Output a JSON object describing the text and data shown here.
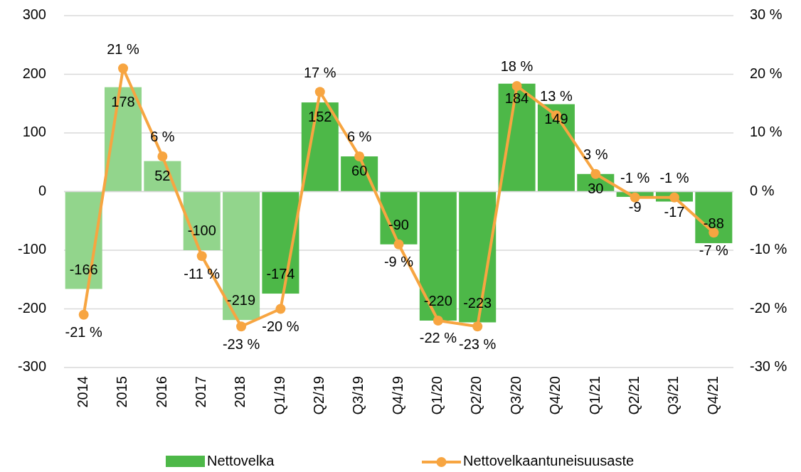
{
  "chart_data": {
    "type": "bar",
    "categories": [
      "2014",
      "2015",
      "2016",
      "2017",
      "2018",
      "Q1/19",
      "Q2/19",
      "Q3/19",
      "Q4/19",
      "Q1/20",
      "Q2/20",
      "Q3/20",
      "Q4/20",
      "Q1/21",
      "Q2/21",
      "Q3/21",
      "Q4/21"
    ],
    "series": [
      {
        "name": "Nettovelka",
        "color": "#4db848",
        "colors": [
          "#92d58c",
          "#92d58c",
          "#92d58c",
          "#92d58c",
          "#92d58c",
          "#4db848",
          "#4db848",
          "#4db848",
          "#4db848",
          "#4db848",
          "#4db848",
          "#4db848",
          "#4db848",
          "#4db848",
          "#4db848",
          "#4db848",
          "#4db848"
        ],
        "values": [
          -166,
          178,
          52,
          -100,
          -219,
          -174,
          152,
          60,
          -90,
          -220,
          -223,
          184,
          149,
          30,
          -9,
          -17,
          -88
        ],
        "value_labels": [
          "-166",
          "178",
          "52",
          "-100",
          "-219",
          "-174",
          "152",
          "60",
          "-90",
          "-220",
          "-223",
          "184",
          "149",
          "30",
          "-9",
          "-17",
          "-88"
        ]
      },
      {
        "name": "Nettovelkaantuneisuusaste",
        "type": "line",
        "axis": "y2",
        "color": "#f7a541",
        "marker": "circle",
        "values": [
          -21,
          21,
          6,
          -11,
          -23,
          -20,
          17,
          6,
          -9,
          -22,
          -23,
          18,
          13,
          3,
          -1,
          -1,
          -7
        ],
        "value_labels": [
          "-21 %",
          "21 %",
          "6 %",
          "-11 %",
          "-23 %",
          "-20 %",
          "17 %",
          "6 %",
          "-9 %",
          "-22 %",
          "-23 %",
          "18 %",
          "13 %",
          "3 %",
          "-1 %",
          "-1 %",
          "-7 %"
        ]
      }
    ],
    "ylim": [
      -300,
      300
    ],
    "yticks": [
      -300,
      -200,
      -100,
      0,
      100,
      200,
      300
    ],
    "y2lim": [
      -30,
      30
    ],
    "y2ticks": [
      {
        "value": -30,
        "label": "-30 %"
      },
      {
        "value": -20,
        "label": "-20 %"
      },
      {
        "value": -10,
        "label": "-10 %"
      },
      {
        "value": 0,
        "label": "0 %"
      },
      {
        "value": 10,
        "label": "10 %"
      },
      {
        "value": 20,
        "label": "20 %"
      },
      {
        "value": 30,
        "label": "30 %"
      }
    ],
    "grid": "y",
    "legend": "bottom"
  }
}
